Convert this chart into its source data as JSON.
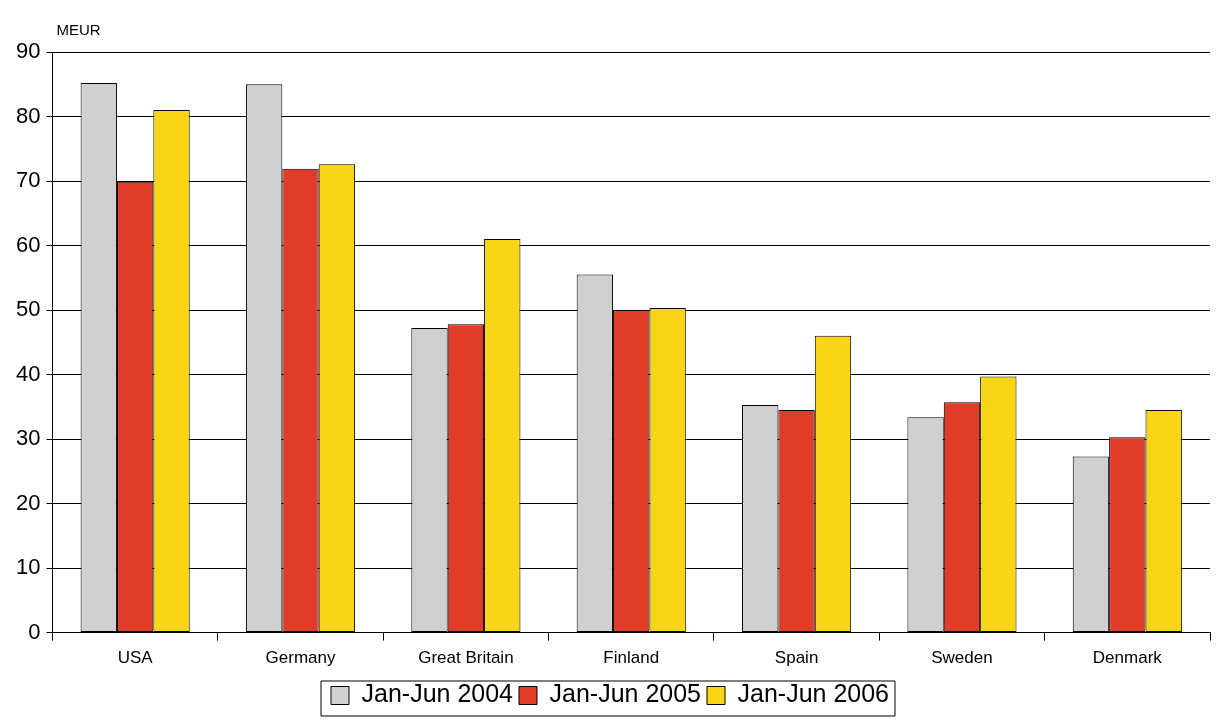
{
  "chart_data": {
    "type": "bar",
    "ylabel": "MEUR",
    "categories": [
      "USA",
      "Germany",
      "Great Britain",
      "Finland",
      "Spain",
      "Sweden",
      "Denmark"
    ],
    "series": [
      {
        "name": "Jan-Jun 2004",
        "color": "#d0d0d0",
        "values": [
          85.2,
          85.0,
          47.2,
          55.5,
          35.3,
          33.4,
          27.3
        ]
      },
      {
        "name": "Jan-Jun 2005",
        "color": "#e03c28",
        "values": [
          69.9,
          71.9,
          47.8,
          50.0,
          34.5,
          35.7,
          30.3
        ]
      },
      {
        "name": "Jan-Jun 2006",
        "color": "#f8d515",
        "values": [
          81.0,
          72.6,
          61.0,
          50.3,
          46.0,
          39.7,
          34.5
        ]
      }
    ],
    "ylim": [
      0,
      90
    ],
    "yticks": [
      0,
      10,
      20,
      30,
      40,
      50,
      60,
      70,
      80,
      90
    ],
    "grid": "y",
    "legend": "bottom"
  }
}
